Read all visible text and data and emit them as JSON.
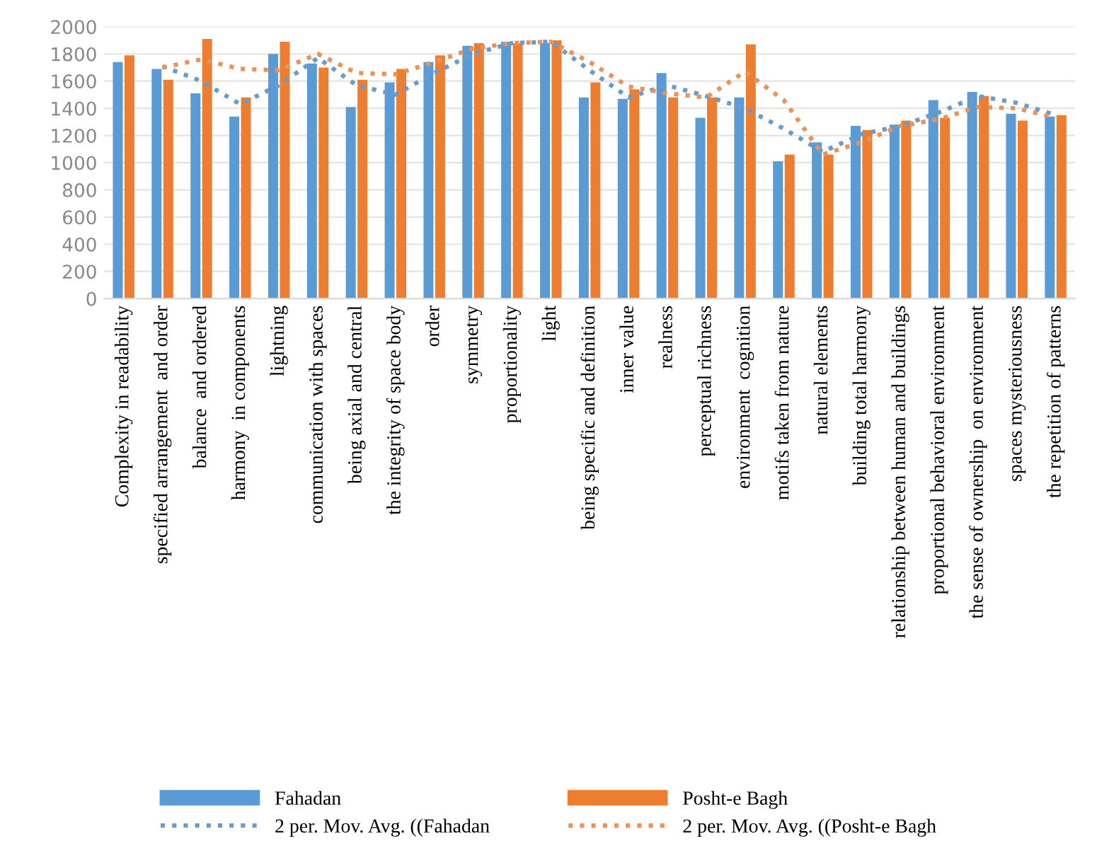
{
  "chart_data": {
    "type": "bar",
    "categories": [
      "Complexity in readability",
      "specified arrangement  and order",
      "balance  and ordered",
      "harmony  in components",
      "lightning",
      "communication with spaces",
      "being axial and central",
      "the integrity of space body",
      "order",
      "symmetry",
      "proportionality",
      "light",
      "being specific and definition",
      "inner value",
      "realness",
      "perceptual richness",
      "environment  cognition",
      "motifs taken from nature",
      "natural elements",
      "building total harmony",
      "relationship between human and buildings",
      "proportional behavioral environment",
      "the sense of ownership  on environment",
      "spaces mysteriousness",
      "the repetition of patterns"
    ],
    "series": [
      {
        "name": "Fahadan",
        "color": "#5b9bd5",
        "values": [
          1740,
          1690,
          1510,
          1340,
          1800,
          1730,
          1410,
          1590,
          1740,
          1860,
          1890,
          1880,
          1480,
          1470,
          1660,
          1330,
          1480,
          1010,
          1150,
          1270,
          1280,
          1460,
          1520,
          1360,
          1340
        ]
      },
      {
        "name": "2 per. Mov. Avg. ((Fahadan",
        "type": "line",
        "line_style": "dotted",
        "color": "#6a9ccb",
        "values": [
          null,
          1710,
          1600,
          1430,
          1570,
          1770,
          1570,
          1500,
          1660,
          1800,
          1880,
          1890,
          1680,
          1480,
          1570,
          1490,
          1400,
          1250,
          1080,
          1210,
          1270,
          1370,
          1490,
          1440,
          1350
        ]
      },
      {
        "name": "Posht-e Bagh",
        "color": "#ed7d31",
        "values": [
          1790,
          1610,
          1910,
          1480,
          1890,
          1700,
          1610,
          1690,
          1790,
          1880,
          1880,
          1900,
          1590,
          1540,
          1480,
          1480,
          1870,
          1060,
          1060,
          1240,
          1310,
          1330,
          1490,
          1310,
          1350
        ]
      },
      {
        "name": "2 per. Mov. Avg. ((Posht-e Bagh",
        "type": "line",
        "line_style": "dotted",
        "color": "#e9935a",
        "values": [
          null,
          1700,
          1760,
          1690,
          1680,
          1800,
          1660,
          1650,
          1740,
          1840,
          1880,
          1890,
          1740,
          1560,
          1510,
          1480,
          1670,
          1460,
          1060,
          1150,
          1270,
          1320,
          1410,
          1400,
          1330
        ]
      }
    ],
    "ylim": [
      0,
      2000
    ],
    "yticks": [
      0,
      200,
      400,
      600,
      800,
      1000,
      1200,
      1400,
      1600,
      1800,
      2000
    ],
    "grid": "y",
    "legend": "bottom"
  }
}
